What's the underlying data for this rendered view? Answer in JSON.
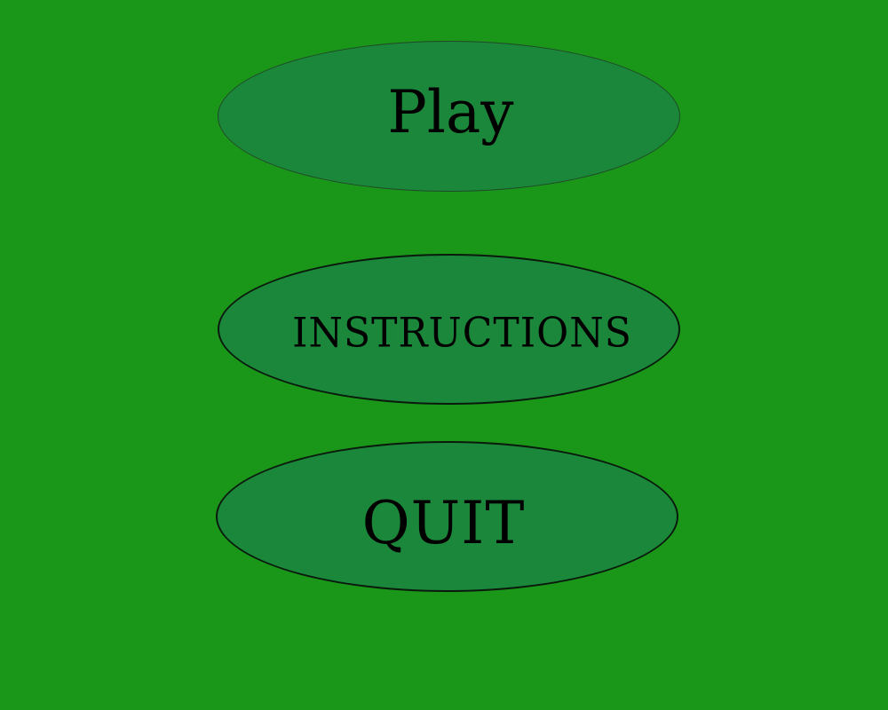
{
  "menu": {
    "play_label": "Play",
    "instructions_label": "INSTRUCTIONS",
    "quit_label": "QUIT"
  },
  "colors": {
    "background": "#1a9618",
    "button_fill": "#1b873a",
    "text": "#000000"
  }
}
